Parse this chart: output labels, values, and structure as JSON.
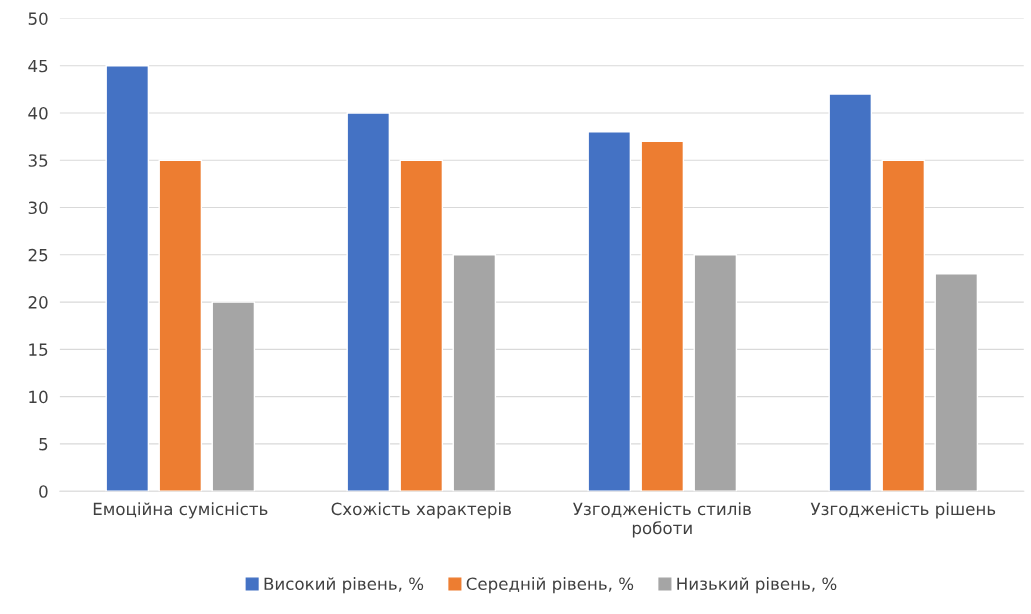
{
  "chart_data": {
    "type": "bar",
    "categories": [
      "Емоційна сумісність",
      "Схожість характерів",
      "Узгодженість стилів роботи",
      "Узгодженість рішень"
    ],
    "series": [
      {
        "name": "Високий рівень, %",
        "color": "#4472c4",
        "values": [
          45,
          40,
          38,
          42
        ]
      },
      {
        "name": "Середній рівень, %",
        "color": "#ed7d31",
        "values": [
          35,
          35,
          37,
          35
        ]
      },
      {
        "name": "Низький рівень, %",
        "color": "#a5a5a5",
        "values": [
          20,
          25,
          25,
          23
        ]
      }
    ],
    "ylim": [
      0,
      50
    ],
    "yticks": [
      0,
      5,
      10,
      15,
      20,
      25,
      30,
      35,
      40,
      45,
      50
    ],
    "grid": "y",
    "legend": "bottom"
  }
}
